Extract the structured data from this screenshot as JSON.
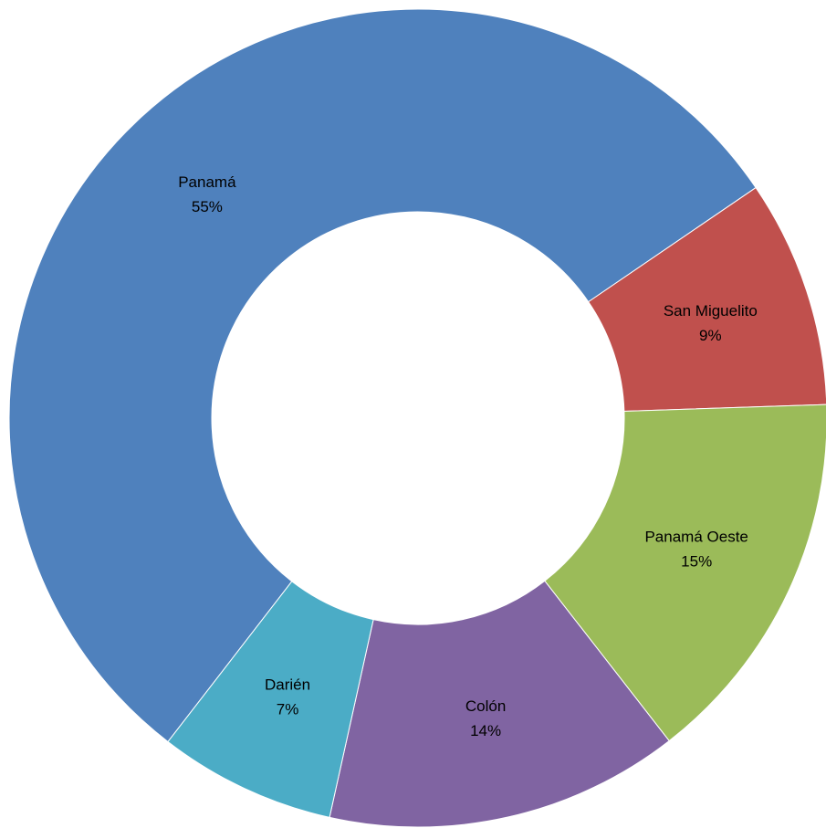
{
  "chart_data": {
    "type": "donut",
    "categories": [
      "Panamá",
      "San Miguelito",
      "Panamá Oeste",
      "Colón",
      "Darién"
    ],
    "values": [
      55,
      9,
      15,
      14,
      7
    ],
    "value_labels": [
      "55%",
      "9%",
      "15%",
      "14%",
      "7%"
    ],
    "colors": [
      "#4f81bd",
      "#c0504d",
      "#9bbb59",
      "#8064a2",
      "#4bacc6"
    ]
  }
}
